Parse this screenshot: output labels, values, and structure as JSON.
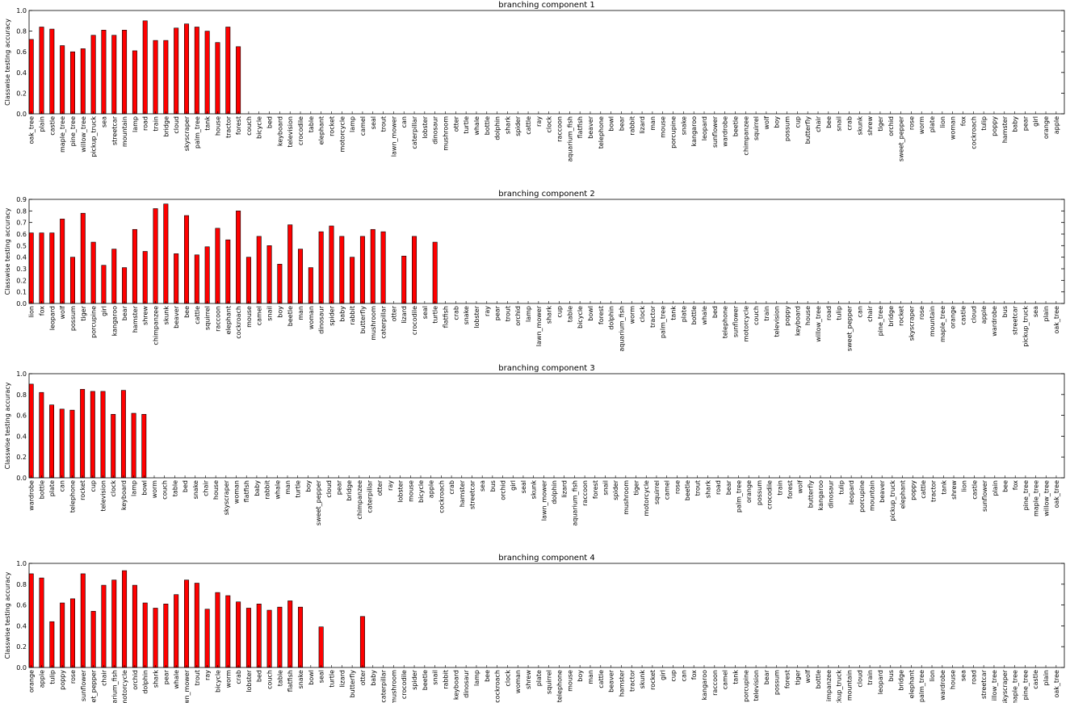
{
  "chart_data": [
    {
      "type": "bar",
      "title": "branching component 1",
      "ylabel": "Classwise testing accuracy",
      "ylim": [
        0,
        1.0
      ],
      "yticks": [
        "0.0",
        "0.2",
        "0.4",
        "0.6",
        "0.8",
        "1.0"
      ],
      "bar_color": "#ff0000",
      "categories": [
        "oak_tree",
        "plain",
        "castle",
        "maple_tree",
        "pine_tree",
        "willow_tree",
        "pickup_truck",
        "sea",
        "streetcar",
        "mountain",
        "lamp",
        "road",
        "train",
        "bridge",
        "cloud",
        "skyscraper",
        "palm_tree",
        "tank",
        "house",
        "tractor",
        "forest",
        "couch",
        "bicycle",
        "bed",
        "keyboard",
        "television",
        "crocodile",
        "table",
        "elephant",
        "rocket",
        "motorcycle",
        "lamp",
        "camel",
        "seal",
        "trout",
        "lawn_mower",
        "can",
        "caterpillar",
        "lobster",
        "dinosaur",
        "mushroom",
        "otter",
        "turtle",
        "whale",
        "bottle",
        "dolphin",
        "shark",
        "spider",
        "cattle",
        "ray",
        "clock",
        "raccoon",
        "aquarium_fish",
        "flatfish",
        "beaver",
        "telephone",
        "bowl",
        "bear",
        "rabbit",
        "lizard",
        "man",
        "mouse",
        "porcupine",
        "snake",
        "kangaroo",
        "leopard",
        "sunflower",
        "wardrobe",
        "beetle",
        "chimpanzee",
        "squirrel",
        "wolf",
        "boy",
        "possum",
        "cup",
        "butterfly",
        "chair",
        "bee",
        "snail",
        "crab",
        "skunk",
        "shrew",
        "tiger",
        "orchid",
        "sweet_pepper",
        "rose",
        "worm",
        "plate",
        "lion",
        "woman",
        "fox",
        "cockroach",
        "tulip",
        "poppy",
        "hamster",
        "baby",
        "pear",
        "girl",
        "orange",
        "apple"
      ],
      "values": [
        0.72,
        0.84,
        0.82,
        0.66,
        0.6,
        0.63,
        0.76,
        0.81,
        0.76,
        0.81,
        0.61,
        0.9,
        0.71,
        0.71,
        0.83,
        0.87,
        0.84,
        0.8,
        0.69,
        0.84,
        0.65,
        0,
        0,
        0,
        0,
        0,
        0,
        0,
        0,
        0,
        0,
        0,
        0,
        0,
        0,
        0,
        0,
        0,
        0,
        0,
        0,
        0,
        0,
        0,
        0,
        0,
        0,
        0,
        0,
        0,
        0,
        0,
        0,
        0,
        0,
        0,
        0,
        0,
        0,
        0,
        0,
        0,
        0,
        0,
        0,
        0,
        0,
        0,
        0,
        0,
        0,
        0,
        0,
        0,
        0,
        0,
        0,
        0,
        0,
        0,
        0,
        0,
        0,
        0,
        0,
        0,
        0,
        0,
        0,
        0,
        0,
        0,
        0,
        0,
        0,
        0,
        0,
        0,
        0,
        0
      ]
    },
    {
      "type": "bar",
      "title": "branching component 2",
      "ylabel": "Classwise testing accuracy",
      "ylim": [
        0,
        0.9
      ],
      "yticks": [
        "0.0",
        "0.1",
        "0.2",
        "0.3",
        "0.4",
        "0.5",
        "0.6",
        "0.7",
        "0.8",
        "0.9"
      ],
      "bar_color": "#ff0000",
      "categories": [
        "lion",
        "fox",
        "leopard",
        "wolf",
        "possum",
        "tiger",
        "porcupine",
        "girl",
        "kangaroo",
        "bear",
        "hamster",
        "shrew",
        "chimpanzee",
        "skunk",
        "beaver",
        "bee",
        "cattle",
        "squirrel",
        "raccoon",
        "elephant",
        "cockroach",
        "mouse",
        "camel",
        "snail",
        "boy",
        "beetle",
        "man",
        "woman",
        "dinosaur",
        "spider",
        "baby",
        "rabbit",
        "butterfly",
        "mushroom",
        "caterpillar",
        "otter",
        "lizard",
        "crocodile",
        "seal",
        "turtle",
        "flatfish",
        "crab",
        "snake",
        "lobster",
        "ray",
        "pear",
        "trout",
        "orchid",
        "lamp",
        "lawn_mower",
        "shark",
        "cup",
        "table",
        "bicycle",
        "bowl",
        "forest",
        "dolphin",
        "aquarium_fish",
        "worm",
        "clock",
        "tractor",
        "palm_tree",
        "tank",
        "plate",
        "bottle",
        "whale",
        "bed",
        "telephone",
        "sunflower",
        "motorcycle",
        "couch",
        "train",
        "television",
        "poppy",
        "keyboard",
        "house",
        "willow_tree",
        "road",
        "tulip",
        "sweet_pepper",
        "can",
        "chair",
        "pine_tree",
        "bridge",
        "rocket",
        "skyscraper",
        "rose",
        "mountain",
        "maple_tree",
        "orange",
        "castle",
        "cloud",
        "apple",
        "wardrobe",
        "bus",
        "streetcar",
        "pickup_truck",
        "sea",
        "plain",
        "oak_tree"
      ],
      "values": [
        0.61,
        0.61,
        0.61,
        0.73,
        0.4,
        0.78,
        0.53,
        0.33,
        0.47,
        0.31,
        0.64,
        0.45,
        0.82,
        0.86,
        0.43,
        0.76,
        0.42,
        0.49,
        0.65,
        0.55,
        0.8,
        0.4,
        0.58,
        0.5,
        0.34,
        0.68,
        0.47,
        0.31,
        0.62,
        0.67,
        0.58,
        0.4,
        0.58,
        0.64,
        0.62,
        0,
        0.41,
        0.58,
        0,
        0.53,
        0,
        0,
        0,
        0,
        0,
        0,
        0,
        0,
        0,
        0,
        0,
        0,
        0,
        0,
        0,
        0,
        0,
        0,
        0,
        0,
        0,
        0,
        0,
        0,
        0,
        0,
        0,
        0,
        0,
        0,
        0,
        0,
        0,
        0,
        0,
        0,
        0,
        0,
        0,
        0,
        0,
        0,
        0,
        0,
        0,
        0,
        0,
        0,
        0,
        0,
        0,
        0,
        0,
        0,
        0,
        0,
        0,
        0,
        0,
        0
      ]
    },
    {
      "type": "bar",
      "title": "branching component 3",
      "ylabel": "Classwise testing accuracy",
      "ylim": [
        0,
        1.0
      ],
      "yticks": [
        "0.0",
        "0.2",
        "0.4",
        "0.6",
        "0.8",
        "1.0"
      ],
      "bar_color": "#ff0000",
      "categories": [
        "wardrobe",
        "bottle",
        "plate",
        "can",
        "telephone",
        "rocket",
        "cup",
        "television",
        "clock",
        "keyboard",
        "lamp",
        "bowl",
        "worm",
        "couch",
        "table",
        "bed",
        "snake",
        "chair",
        "house",
        "skyscraper",
        "woman",
        "flatfish",
        "baby",
        "rabbit",
        "whale",
        "man",
        "turtle",
        "boy",
        "sweet_pepper",
        "cloud",
        "pear",
        "bridge",
        "chimpanzee",
        "caterpillar",
        "otter",
        "ray",
        "lobster",
        "mouse",
        "bicycle",
        "apple",
        "cockroach",
        "crab",
        "hamster",
        "streetcar",
        "sea",
        "bus",
        "orchid",
        "girl",
        "seal",
        "skunk",
        "lawn_mower",
        "dolphin",
        "lizard",
        "aquarium_fish",
        "raccoon",
        "forest",
        "snail",
        "spider",
        "mushroom",
        "tiger",
        "motorcycle",
        "squirrel",
        "camel",
        "rose",
        "beetle",
        "trout",
        "shark",
        "road",
        "bear",
        "palm_tree",
        "orange",
        "possum",
        "crocodile",
        "train",
        "forest",
        "wolf",
        "butterfly",
        "kangaroo",
        "dinosaur",
        "tulip",
        "leopard",
        "porcupine",
        "mountain",
        "beaver",
        "pickup_truck",
        "elephant",
        "poppy",
        "cattle",
        "tractor",
        "tank",
        "shrew",
        "lion",
        "castle",
        "sunflower",
        "plain",
        "bee",
        "fox",
        "pine_tree",
        "maple_tree",
        "willow_tree",
        "oak_tree"
      ],
      "values": [
        0.9,
        0.82,
        0.7,
        0.66,
        0.65,
        0.85,
        0.83,
        0.83,
        0.61,
        0.84,
        0.62,
        0.61,
        0,
        0,
        0,
        0,
        0,
        0,
        0,
        0,
        0,
        0,
        0,
        0,
        0,
        0,
        0,
        0,
        0,
        0,
        0,
        0,
        0,
        0,
        0,
        0,
        0,
        0,
        0,
        0,
        0,
        0,
        0,
        0,
        0,
        0,
        0,
        0,
        0,
        0,
        0,
        0,
        0,
        0,
        0,
        0,
        0,
        0,
        0,
        0,
        0,
        0,
        0,
        0,
        0,
        0,
        0,
        0,
        0,
        0,
        0,
        0,
        0,
        0,
        0,
        0,
        0,
        0,
        0,
        0,
        0,
        0,
        0,
        0,
        0,
        0,
        0,
        0,
        0,
        0,
        0,
        0,
        0,
        0,
        0,
        0,
        0,
        0,
        0,
        0,
        0
      ]
    },
    {
      "type": "bar",
      "title": "branching component 4",
      "ylabel": "Classwise testing accuracy",
      "ylim": [
        0,
        1.0
      ],
      "yticks": [
        "0.0",
        "0.2",
        "0.4",
        "0.6",
        "0.8",
        "1.0"
      ],
      "bar_color": "#ff0000",
      "categories": [
        "orange",
        "apple",
        "tulip",
        "poppy",
        "rose",
        "sunflower",
        "et_pepper",
        "chair",
        "arium_fish",
        "motorcycle",
        "orchid",
        "dolphin",
        "shark",
        "pear",
        "whale",
        "wn_mower",
        "trout",
        "ray",
        "bicycle",
        "worm",
        "crab",
        "lobster",
        "bed",
        "couch",
        "table",
        "flatfish",
        "snake",
        "bowl",
        "seal",
        "turtle",
        "lizard",
        "butterfly",
        "otter",
        "baby",
        "caterpillar",
        "mushroom",
        "crocodile",
        "spider",
        "beetle",
        "snail",
        "rabbit",
        "keyboard",
        "dinosaur",
        "lamp",
        "bee",
        "cockroach",
        "clock",
        "woman",
        "shrew",
        "plate",
        "squirrel",
        "telephone",
        "mouse",
        "boy",
        "man",
        "cattle",
        "beaver",
        "hamster",
        "tractor",
        "skunk",
        "rocket",
        "girl",
        "cup",
        "can",
        "fox",
        "kangaroo",
        "raccoon",
        "camel",
        "tank",
        "porcupine",
        "television",
        "bear",
        "possum",
        "forest",
        "tiger",
        "wolf",
        "bottle",
        "impanzee",
        "ckup_truck",
        "mountain",
        "cloud",
        "train",
        "leopard",
        "bus",
        "bridge",
        "elephant",
        "palm_tree",
        "lion",
        "wardrobe",
        "house",
        "sea",
        "road",
        "streetcar",
        "illow_tree",
        "skyscraper",
        "naple_tree",
        "pine_tree",
        "castle",
        "plain",
        "oak_tree"
      ],
      "values": [
        0.9,
        0.86,
        0.44,
        0.62,
        0.66,
        0.9,
        0.54,
        0.79,
        0.84,
        0.93,
        0.79,
        0.62,
        0.57,
        0.61,
        0.7,
        0.84,
        0.81,
        0.56,
        0.72,
        0.69,
        0.63,
        0.57,
        0.61,
        0.55,
        0.58,
        0.64,
        0.58,
        0,
        0.39,
        0,
        0,
        0,
        0.49,
        0,
        0,
        0,
        0,
        0,
        0,
        0,
        0,
        0,
        0,
        0,
        0,
        0,
        0,
        0,
        0,
        0,
        0,
        0,
        0,
        0,
        0,
        0,
        0,
        0,
        0,
        0,
        0,
        0,
        0,
        0,
        0,
        0,
        0,
        0,
        0,
        0,
        0,
        0,
        0,
        0,
        0,
        0,
        0,
        0,
        0,
        0,
        0,
        0,
        0,
        0,
        0,
        0,
        0,
        0,
        0,
        0,
        0,
        0,
        0,
        0,
        0,
        0,
        0,
        0,
        0,
        0
      ]
    }
  ]
}
